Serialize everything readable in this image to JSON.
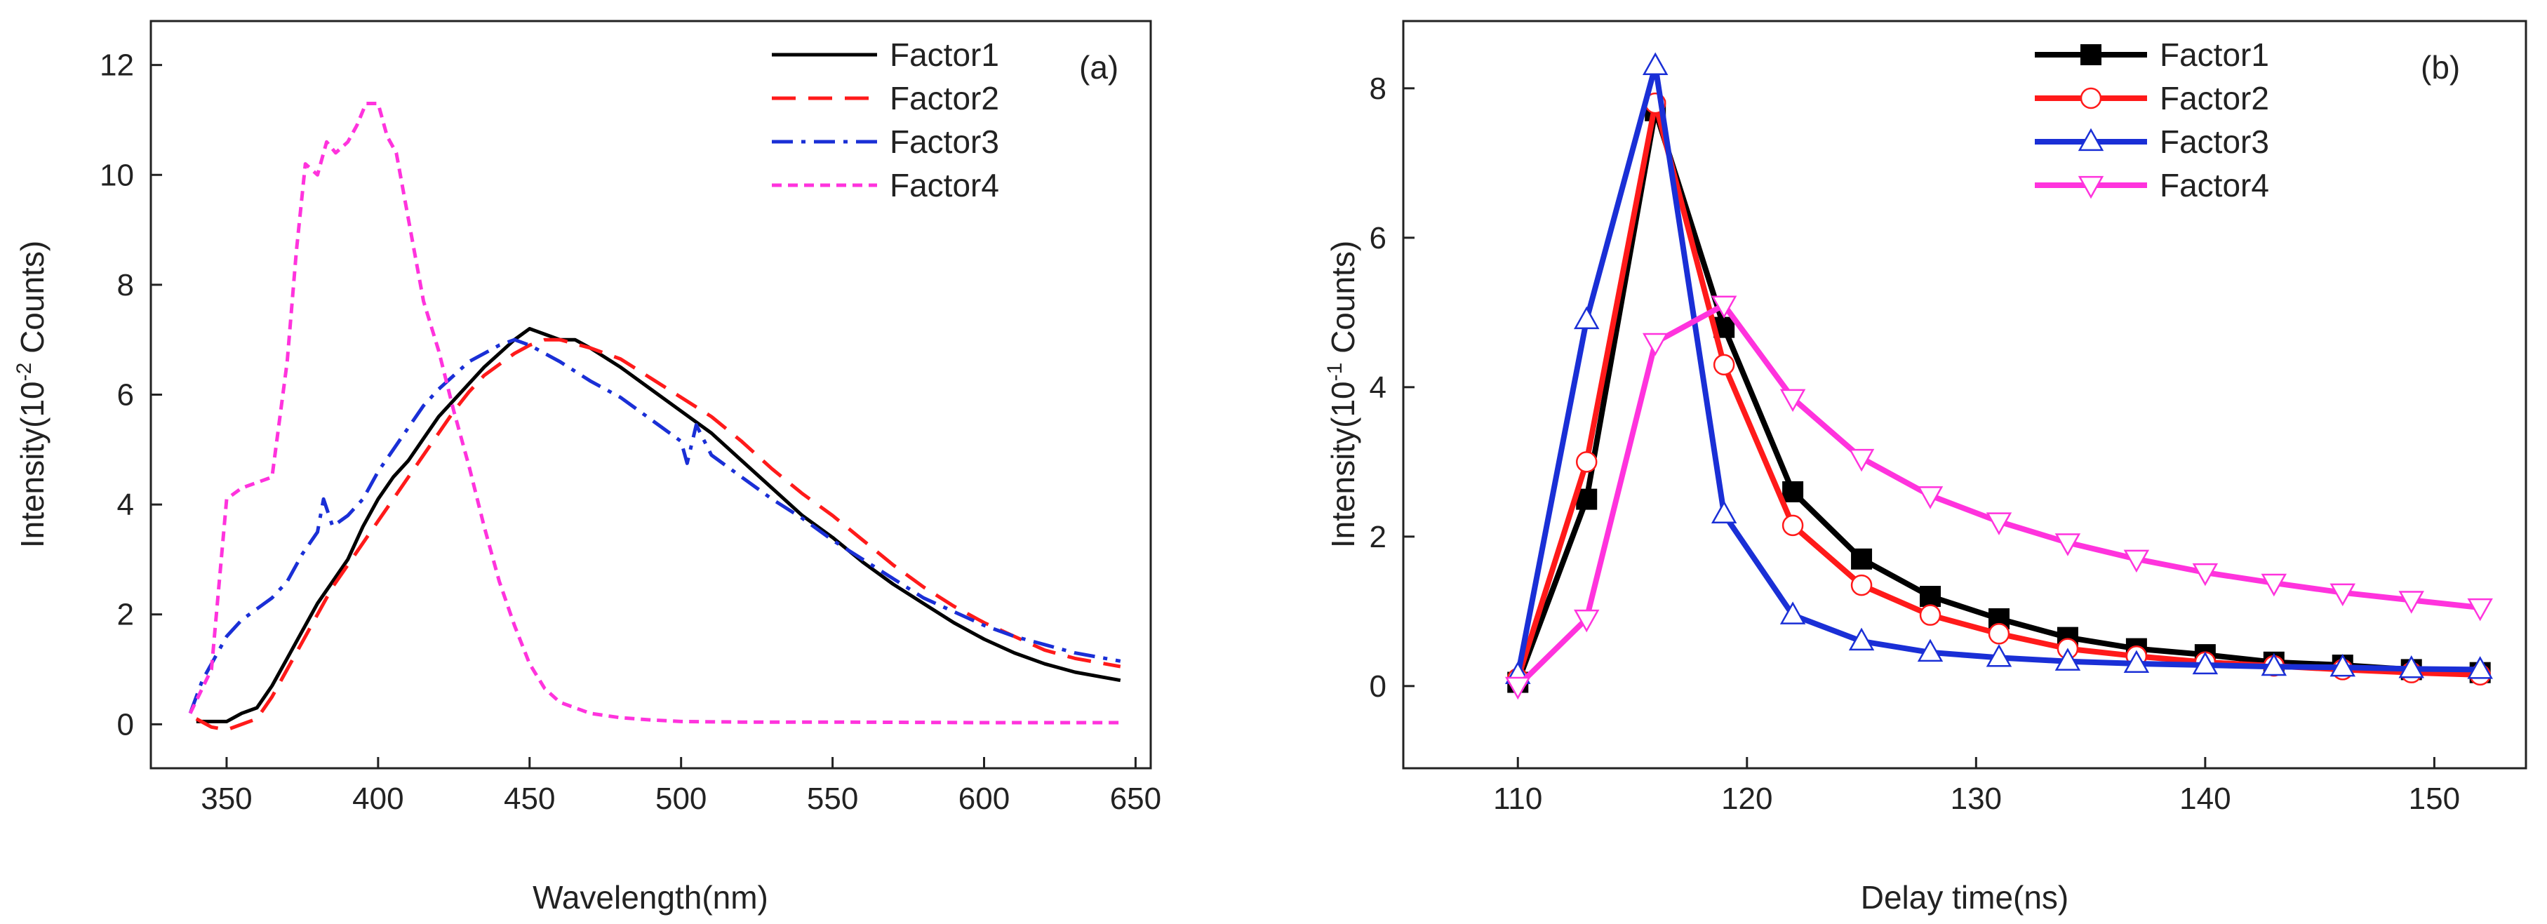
{
  "chart_data": [
    {
      "panel": "(a)",
      "type": "line",
      "xlabel": "Wavelength(nm)",
      "ylabel": "Intensity(10",
      "ylabel_exp": "-2",
      "ylabel_tail": " Counts)",
      "xlim": [
        325,
        655
      ],
      "ylim": [
        -0.8,
        12.8
      ],
      "xticks": [
        350,
        400,
        450,
        500,
        550,
        600,
        650
      ],
      "yticks": [
        0,
        2,
        4,
        6,
        8,
        10,
        12
      ],
      "legend_position": "top-right",
      "series": [
        {
          "name": "Factor1",
          "color": "#000000",
          "dash": "solid",
          "x": [
            340,
            350,
            355,
            360,
            365,
            370,
            375,
            380,
            385,
            390,
            395,
            400,
            405,
            410,
            415,
            420,
            425,
            430,
            435,
            440,
            445,
            450,
            455,
            460,
            465,
            470,
            480,
            490,
            500,
            510,
            520,
            530,
            540,
            550,
            560,
            570,
            580,
            590,
            600,
            610,
            620,
            630,
            640,
            645
          ],
          "y": [
            0.05,
            0.05,
            0.2,
            0.3,
            0.7,
            1.2,
            1.7,
            2.2,
            2.6,
            3.0,
            3.6,
            4.1,
            4.5,
            4.8,
            5.2,
            5.6,
            5.9,
            6.2,
            6.5,
            6.75,
            7.0,
            7.2,
            7.1,
            7.0,
            7.0,
            6.85,
            6.5,
            6.1,
            5.7,
            5.3,
            4.8,
            4.3,
            3.8,
            3.4,
            2.95,
            2.55,
            2.2,
            1.85,
            1.55,
            1.3,
            1.1,
            0.95,
            0.85,
            0.8
          ]
        },
        {
          "name": "Factor2",
          "color": "#ff1a1a",
          "dash": "long-dash",
          "x": [
            340,
            345,
            350,
            355,
            360,
            365,
            370,
            375,
            380,
            385,
            390,
            395,
            400,
            405,
            410,
            415,
            420,
            425,
            430,
            435,
            440,
            445,
            450,
            455,
            460,
            470,
            480,
            490,
            500,
            510,
            520,
            530,
            540,
            550,
            560,
            570,
            580,
            590,
            600,
            610,
            620,
            630,
            640,
            645
          ],
          "y": [
            0.1,
            -0.05,
            -0.1,
            0.0,
            0.1,
            0.5,
            1.0,
            1.5,
            2.0,
            2.5,
            2.9,
            3.3,
            3.7,
            4.1,
            4.5,
            4.9,
            5.3,
            5.7,
            6.05,
            6.35,
            6.55,
            6.75,
            6.9,
            7.0,
            7.0,
            6.85,
            6.65,
            6.3,
            5.95,
            5.6,
            5.15,
            4.65,
            4.2,
            3.8,
            3.35,
            2.9,
            2.5,
            2.15,
            1.85,
            1.6,
            1.35,
            1.2,
            1.1,
            1.05
          ]
        },
        {
          "name": "Factor3",
          "color": "#1a2fd6",
          "dash": "dash-dot",
          "x": [
            338,
            342,
            346,
            350,
            355,
            360,
            365,
            370,
            375,
            380,
            382,
            385,
            390,
            395,
            400,
            405,
            410,
            415,
            420,
            425,
            430,
            435,
            440,
            445,
            450,
            455,
            460,
            470,
            480,
            490,
            500,
            502,
            505,
            510,
            520,
            530,
            540,
            550,
            560,
            570,
            580,
            590,
            600,
            610,
            620,
            630,
            640,
            645
          ],
          "y": [
            0.2,
            0.8,
            1.2,
            1.6,
            1.9,
            2.1,
            2.3,
            2.6,
            3.1,
            3.5,
            4.1,
            3.6,
            3.8,
            4.1,
            4.6,
            5.0,
            5.4,
            5.8,
            6.1,
            6.35,
            6.6,
            6.75,
            6.9,
            7.0,
            6.9,
            6.75,
            6.6,
            6.25,
            5.95,
            5.55,
            5.15,
            4.75,
            5.45,
            4.9,
            4.5,
            4.1,
            3.75,
            3.35,
            3.0,
            2.65,
            2.3,
            2.05,
            1.8,
            1.6,
            1.45,
            1.3,
            1.2,
            1.15
          ]
        },
        {
          "name": "Factor4",
          "color": "#ff33dd",
          "dash": "short-dash",
          "x": [
            338,
            345,
            350,
            355,
            360,
            365,
            370,
            373,
            376,
            380,
            383,
            386,
            390,
            393,
            396,
            400,
            403,
            406,
            410,
            415,
            420,
            425,
            430,
            435,
            440,
            445,
            450,
            455,
            460,
            470,
            480,
            490,
            500,
            520,
            550,
            600,
            645
          ],
          "y": [
            0.2,
            1.0,
            4.1,
            4.3,
            4.4,
            4.5,
            6.6,
            8.6,
            10.2,
            10.0,
            10.6,
            10.4,
            10.6,
            10.9,
            11.3,
            11.3,
            10.7,
            10.4,
            9.2,
            7.7,
            6.8,
            5.7,
            4.7,
            3.6,
            2.6,
            1.8,
            1.1,
            0.65,
            0.4,
            0.2,
            0.12,
            0.08,
            0.05,
            0.04,
            0.04,
            0.03,
            0.03
          ]
        }
      ]
    },
    {
      "panel": "(b)",
      "type": "line",
      "xlabel": "Delay time(ns)",
      "ylabel": "Intensity(10",
      "ylabel_exp": "-1",
      "ylabel_tail": " Counts)",
      "xlim": [
        105,
        154
      ],
      "ylim": [
        -1.1,
        8.9
      ],
      "xticks": [
        110,
        120,
        130,
        140,
        150
      ],
      "yticks": [
        0,
        2,
        4,
        6,
        8
      ],
      "legend_position": "top-right",
      "series": [
        {
          "name": "Factor1",
          "color": "#000000",
          "marker": "filled-square",
          "x": [
            110,
            113,
            116,
            119,
            122,
            125,
            128,
            131,
            134,
            137,
            140,
            143,
            146,
            149,
            152
          ],
          "y": [
            0.05,
            2.5,
            7.7,
            4.8,
            2.6,
            1.7,
            1.2,
            0.9,
            0.65,
            0.5,
            0.42,
            0.32,
            0.28,
            0.22,
            0.18
          ]
        },
        {
          "name": "Factor2",
          "color": "#ff1a1a",
          "marker": "open-circle",
          "x": [
            110,
            113,
            116,
            119,
            122,
            125,
            128,
            131,
            134,
            137,
            140,
            143,
            146,
            149,
            152
          ],
          "y": [
            0.1,
            3.0,
            7.8,
            4.3,
            2.15,
            1.35,
            0.95,
            0.7,
            0.5,
            0.4,
            0.32,
            0.27,
            0.22,
            0.18,
            0.15
          ]
        },
        {
          "name": "Factor3",
          "color": "#1a2fd6",
          "marker": "open-triangle-up",
          "x": [
            110,
            113,
            116,
            119,
            122,
            125,
            128,
            131,
            134,
            137,
            140,
            143,
            146,
            149,
            152
          ],
          "y": [
            0.15,
            4.9,
            8.3,
            2.3,
            0.95,
            0.6,
            0.45,
            0.38,
            0.33,
            0.3,
            0.28,
            0.26,
            0.25,
            0.23,
            0.22
          ]
        },
        {
          "name": "Factor4",
          "color": "#ff33dd",
          "marker": "open-triangle-down",
          "x": [
            110,
            113,
            116,
            119,
            122,
            125,
            128,
            131,
            134,
            137,
            140,
            143,
            146,
            149,
            152
          ],
          "y": [
            0.0,
            0.9,
            4.6,
            5.1,
            3.85,
            3.05,
            2.55,
            2.2,
            1.92,
            1.7,
            1.52,
            1.38,
            1.25,
            1.15,
            1.05
          ]
        }
      ]
    }
  ]
}
